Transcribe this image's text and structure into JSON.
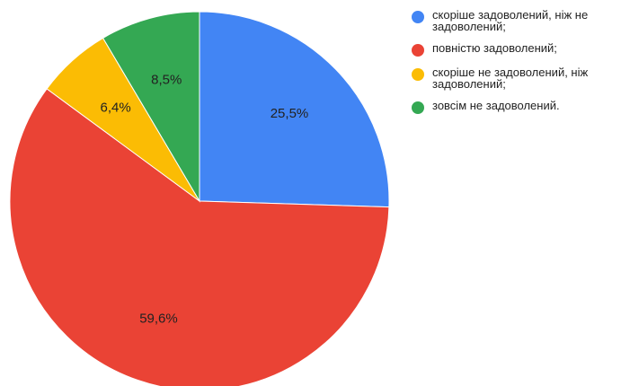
{
  "chart_data": {
    "type": "pie",
    "title": "",
    "slices": [
      {
        "label": "скоріше задоволений, ніж не задоволений;",
        "value": 25.5,
        "display": "25,5%",
        "color": "#4285f4"
      },
      {
        "label": "повністю задоволений;",
        "value": 59.6,
        "display": "59,6%",
        "color": "#ea4335"
      },
      {
        "label": "скоріше не задоволений, ніж задоволений;",
        "value": 6.4,
        "display": "6,4%",
        "color": "#fbbc04"
      },
      {
        "label": "зовсім не задоволений.",
        "value": 8.5,
        "display": "8,5%",
        "color": "#34a853"
      }
    ],
    "legend_position": "top-right"
  }
}
